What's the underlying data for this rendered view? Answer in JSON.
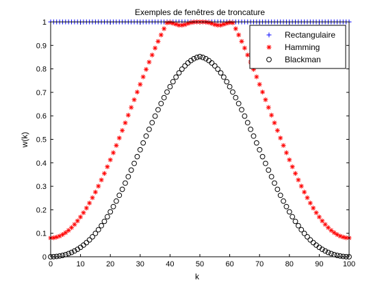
{
  "chart_data": {
    "type": "scatter",
    "title": "Exemples de fenêtres de troncature",
    "xlabel": "k",
    "ylabel": "w(k)",
    "xlim": [
      0,
      100
    ],
    "ylim": [
      0,
      1
    ],
    "xticks": [
      "0",
      "10",
      "20",
      "30",
      "40",
      "50",
      "60",
      "70",
      "80",
      "90",
      "100"
    ],
    "yticks": [
      "0",
      "0.1",
      "0.2",
      "0.3",
      "0.4",
      "0.5",
      "0.6",
      "0.7",
      "0.8",
      "0.9",
      "1"
    ],
    "grid": false,
    "legend_position": "top-right",
    "n_points": 101,
    "series": [
      {
        "name": "Rectangulaire",
        "marker": "plus",
        "color": "#0000ff",
        "values": [
          1,
          1,
          1,
          1,
          1,
          1,
          1,
          1,
          1,
          1,
          1,
          1,
          1,
          1,
          1,
          1,
          1,
          1,
          1,
          1,
          1,
          1,
          1,
          1,
          1,
          1,
          1,
          1,
          1,
          1,
          1,
          1,
          1,
          1,
          1,
          1,
          1,
          1,
          1,
          1,
          1,
          1,
          1,
          1,
          1,
          1,
          1,
          1,
          1,
          1,
          1,
          1,
          1,
          1,
          1,
          1,
          1,
          1,
          1,
          1,
          1,
          1,
          1,
          1,
          1,
          1,
          1,
          1,
          1,
          1,
          1,
          1,
          1,
          1,
          1,
          1,
          1,
          1,
          1,
          1,
          1,
          1,
          1,
          1,
          1,
          1,
          1,
          1,
          1,
          1,
          1,
          1,
          1,
          1,
          1,
          1,
          1,
          1,
          1,
          1,
          1
        ]
      },
      {
        "name": "Hamming",
        "marker": "asterisk",
        "color": "#ff0000",
        "values": [
          0.08,
          0.0809,
          0.0836,
          0.0881,
          0.0945,
          0.1026,
          0.1125,
          0.1242,
          0.1376,
          0.1527,
          0.1694,
          0.1876,
          0.2074,
          0.2287,
          0.2514,
          0.2754,
          0.3007,
          0.3272,
          0.3547,
          0.3832,
          0.4127,
          0.443,
          0.474,
          0.5056,
          0.5377,
          0.5702,
          0.6029,
          0.6358,
          0.6686,
          0.7014,
          0.734,
          0.7661,
          0.7978,
          0.8288,
          0.8591,
          0.8886,
          0.9171,
          0.9446,
          0.971,
          0.996,
          0.9974,
          0.994,
          0.99,
          0.9861,
          0.9859,
          0.9886,
          0.9933,
          0.9971,
          0.9991,
          0.9998,
          1.0,
          0.9998,
          0.9991,
          0.9971,
          0.9933,
          0.9886,
          0.9859,
          0.9861,
          0.99,
          0.994,
          0.9974,
          0.996,
          0.971,
          0.9446,
          0.9171,
          0.8886,
          0.8591,
          0.8288,
          0.7978,
          0.7661,
          0.734,
          0.7014,
          0.6686,
          0.6358,
          0.6029,
          0.5702,
          0.5377,
          0.5056,
          0.474,
          0.443,
          0.4127,
          0.3832,
          0.3547,
          0.3272,
          0.3007,
          0.2754,
          0.2514,
          0.2287,
          0.2074,
          0.1876,
          0.1694,
          0.1527,
          0.1376,
          0.1242,
          0.1125,
          0.1026,
          0.0945,
          0.0881,
          0.0836,
          0.0809,
          0.08
        ]
      },
      {
        "name": "Blackman",
        "marker": "circle",
        "color": "#000000",
        "values": [
          0.0,
          0.0004,
          0.0014,
          0.0032,
          0.0058,
          0.0092,
          0.0134,
          0.0186,
          0.0247,
          0.0318,
          0.0401,
          0.0495,
          0.0601,
          0.0719,
          0.085,
          0.0994,
          0.1151,
          0.1322,
          0.1506,
          0.1703,
          0.1913,
          0.2136,
          0.237,
          0.2616,
          0.2872,
          0.3137,
          0.341,
          0.369,
          0.3975,
          0.4264,
          0.4555,
          0.4847,
          0.5138,
          0.5426,
          0.571,
          0.5989,
          0.626,
          0.6522,
          0.6774,
          0.7014,
          0.7241,
          0.7453,
          0.7649,
          0.7828,
          0.7989,
          0.813,
          0.8252,
          0.8353,
          0.8432,
          0.8489,
          0.8524,
          0.8489,
          0.8432,
          0.8353,
          0.8252,
          0.813,
          0.7989,
          0.7828,
          0.7649,
          0.7453,
          0.7241,
          0.7014,
          0.6774,
          0.6522,
          0.626,
          0.5989,
          0.571,
          0.5426,
          0.5138,
          0.4847,
          0.4555,
          0.4264,
          0.3975,
          0.369,
          0.341,
          0.3137,
          0.2872,
          0.2616,
          0.237,
          0.2136,
          0.1913,
          0.1703,
          0.1506,
          0.1322,
          0.1151,
          0.0994,
          0.085,
          0.0719,
          0.0601,
          0.0495,
          0.0401,
          0.0318,
          0.0247,
          0.0186,
          0.0134,
          0.0092,
          0.0058,
          0.0032,
          0.0014,
          0.0004,
          0.0
        ]
      }
    ]
  }
}
